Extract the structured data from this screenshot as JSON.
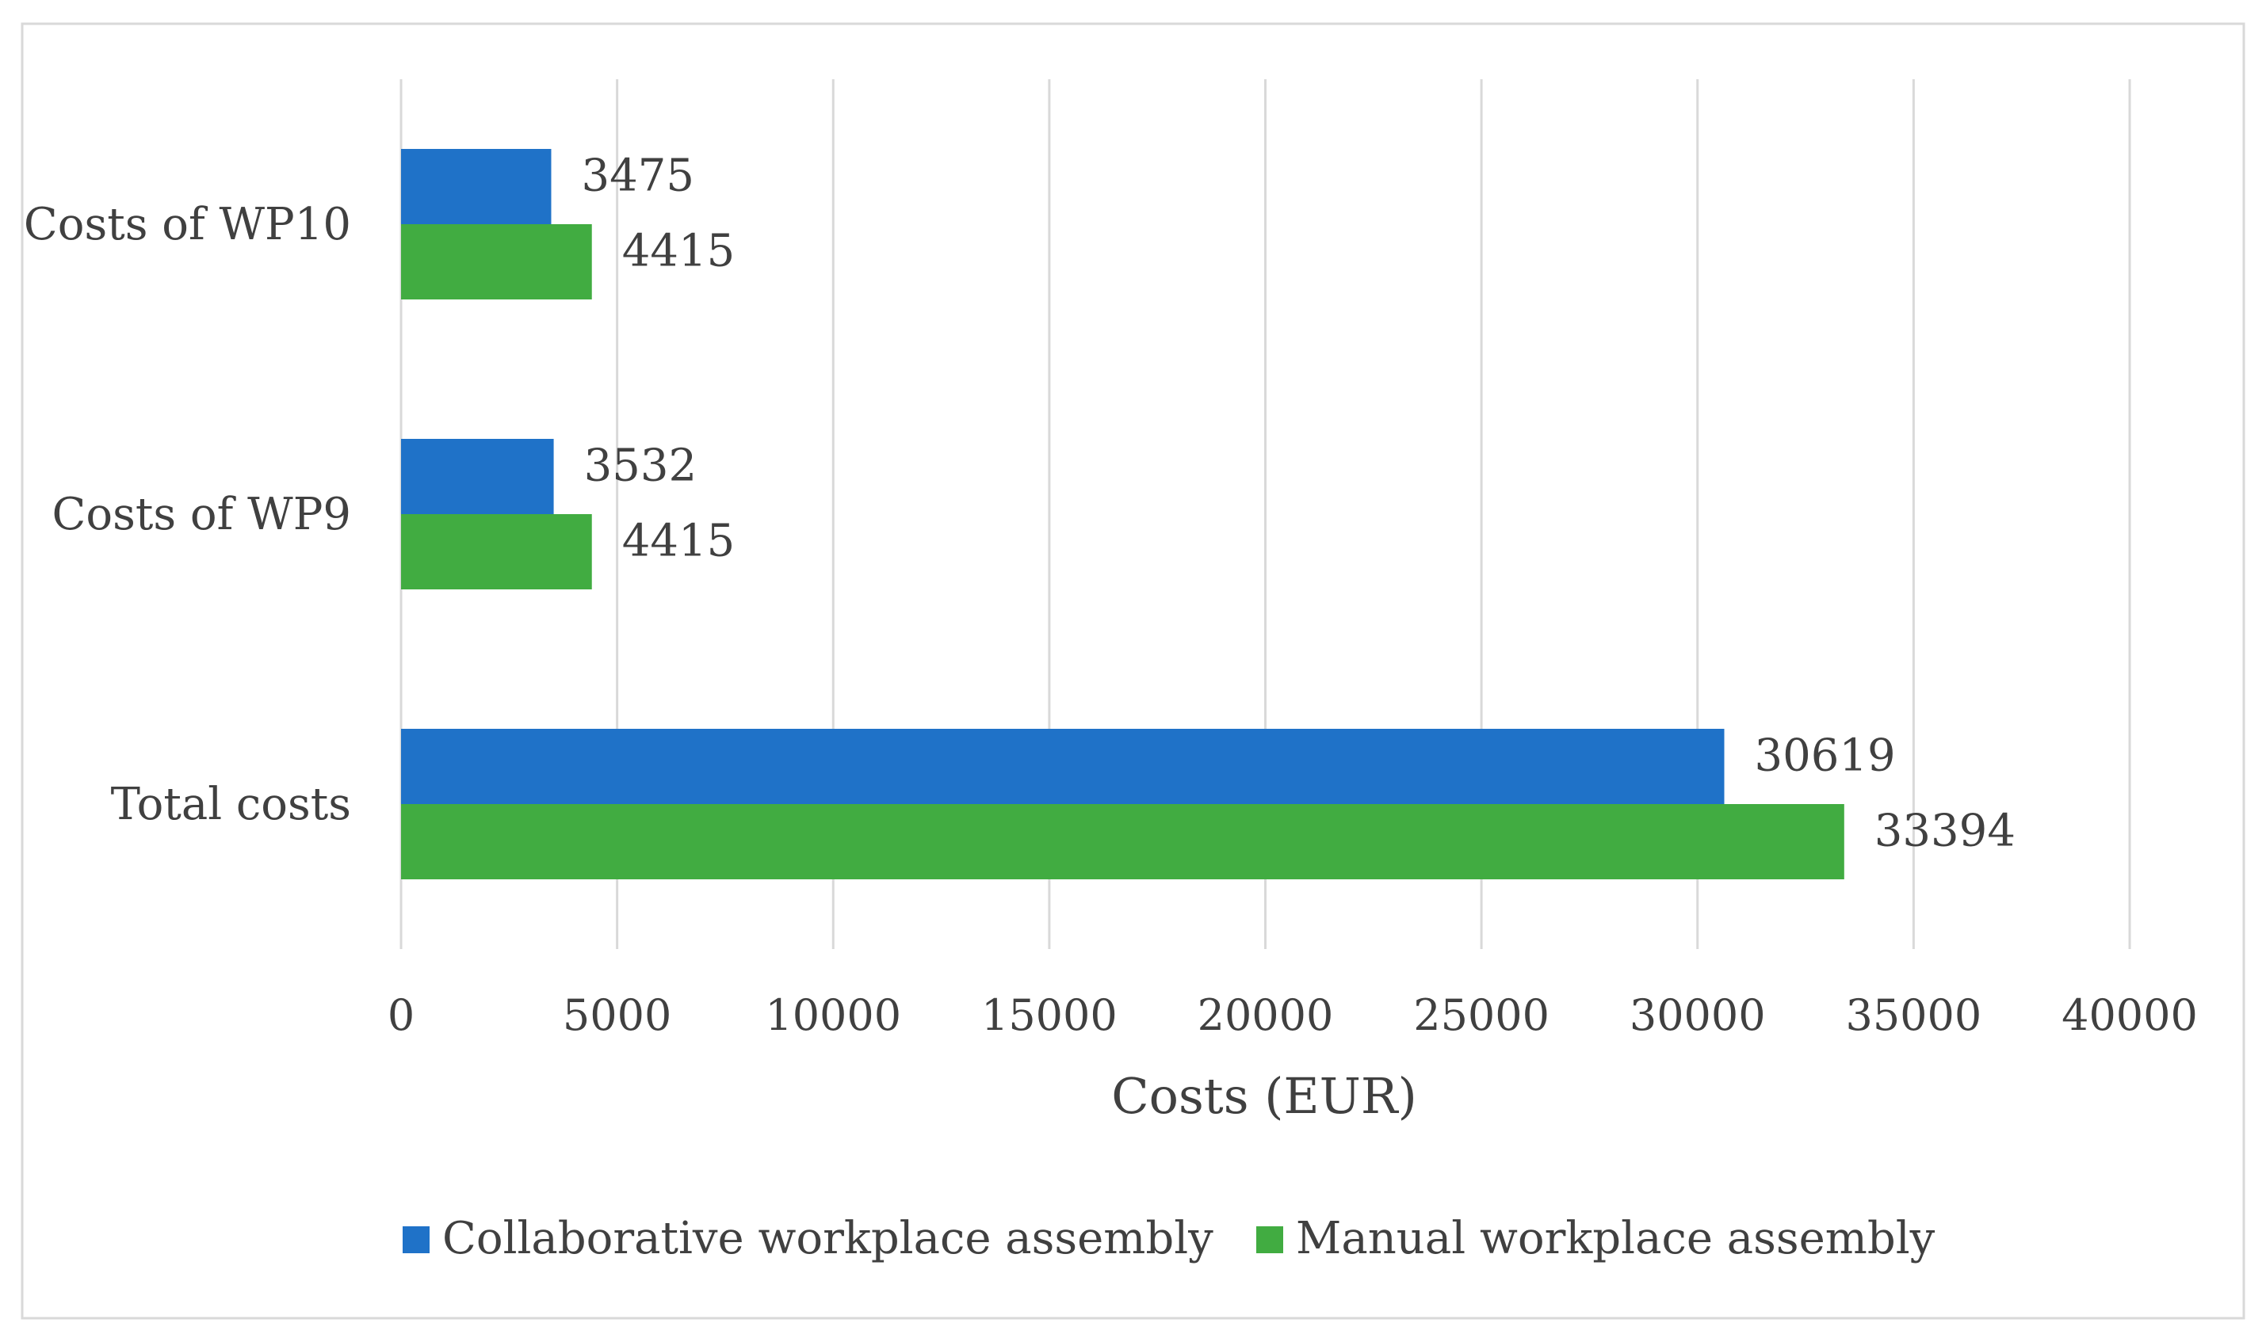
{
  "chart_data": {
    "type": "bar",
    "orientation": "horizontal",
    "title": "",
    "categories": [
      "Costs of WP10",
      "Costs of WP9",
      "Total costs"
    ],
    "series": [
      {
        "name": "Collaborative workplace assembly",
        "color": "#1f72c8",
        "values": [
          3475,
          3532,
          30619
        ],
        "labels": [
          "3475",
          "3532",
          "30619"
        ]
      },
      {
        "name": "Manual workplace assembly",
        "color": "#41ac41",
        "values": [
          4415,
          4415,
          33394
        ],
        "labels": [
          "4415",
          "4415",
          "33394"
        ]
      }
    ],
    "xlabel": "Costs (EUR)",
    "ylabel": "",
    "xlim": [
      0,
      40000
    ],
    "xticks": [
      0,
      5000,
      10000,
      15000,
      20000,
      25000,
      30000,
      35000,
      40000
    ],
    "xtick_labels": [
      "0",
      "5000",
      "10000",
      "15000",
      "20000",
      "25000",
      "30000",
      "35000",
      "40000"
    ],
    "grid": true,
    "legend_position": "bottom"
  },
  "colors": {
    "gridline": "#d9d9d9",
    "border": "#d9d9d9",
    "text": "#404040"
  }
}
